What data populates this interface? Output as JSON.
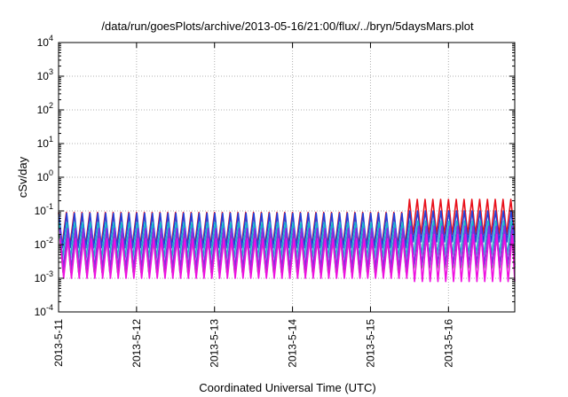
{
  "chart_data": {
    "type": "line",
    "title": "/data/run/goesPlots/archive/2013-05-16/21:00/flux/../bryn/5daysMars.plot",
    "xlabel": "Coordinated Universal Time (UTC)",
    "ylabel": "cSv/day",
    "yscale": "log",
    "ylim": [
      0.0001,
      10000
    ],
    "xlim_days": [
      0,
      5.85
    ],
    "grid": true,
    "legend": "none",
    "y_ticks": [
      {
        "base": "10",
        "exp": "-4"
      },
      {
        "base": "10",
        "exp": "-3"
      },
      {
        "base": "10",
        "exp": "-2"
      },
      {
        "base": "10",
        "exp": "-1"
      },
      {
        "base": "10",
        "exp": "0"
      },
      {
        "base": "10",
        "exp": "1"
      },
      {
        "base": "10",
        "exp": "2"
      },
      {
        "base": "10",
        "exp": "3"
      },
      {
        "base": "10",
        "exp": "4"
      }
    ],
    "x_ticks": [
      "2013-5-11",
      "2013-5-12",
      "2013-5-13",
      "2013-5-14",
      "2013-5-15",
      "2013-5-16"
    ],
    "oscillation": {
      "start_day": 0,
      "end_day": 5.85,
      "period_days": 0.1,
      "late_change_day": 4.5
    },
    "series": [
      {
        "color": "#e8101a",
        "peak_early": 0.09,
        "trough_early": 0.009,
        "peak_late": 0.22,
        "trough_late": 0.02
      },
      {
        "color": "#2240d8",
        "peak_early": 0.085,
        "trough_early": 0.008,
        "peak_late": 0.1,
        "trough_late": 0.012
      },
      {
        "color": "#18b8c8",
        "peak_early": 0.045,
        "trough_early": 0.004,
        "peak_late": 0.05,
        "trough_late": 0.005
      },
      {
        "color": "#2e8e4e",
        "peak_early": 0.02,
        "trough_early": 0.0015,
        "peak_late": 0.025,
        "trough_late": 0.002
      },
      {
        "color": "#8a2be2",
        "peak_early": 0.03,
        "trough_early": 0.002,
        "peak_late": 0.035,
        "trough_late": 0.0025
      },
      {
        "color": "#ee10e0",
        "peak_early": 0.015,
        "trough_early": 0.001,
        "peak_late": 0.02,
        "trough_late": 0.0008
      }
    ]
  }
}
